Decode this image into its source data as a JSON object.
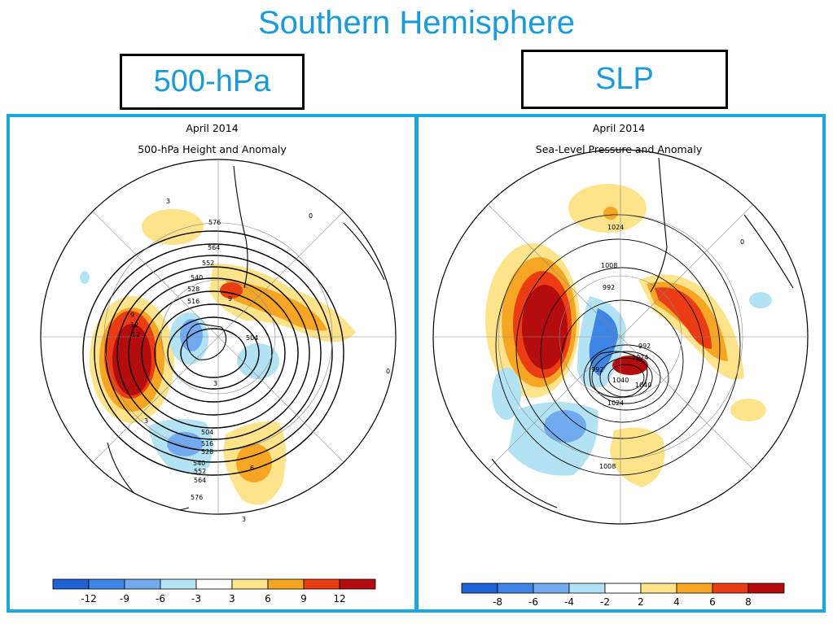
{
  "slide": {
    "title": "Southern Hemisphere",
    "box_left": "500-hPa",
    "box_right": "SLP"
  },
  "panels": [
    {
      "month": "April 2014",
      "subtitle": "500-hPa Height and Anomaly",
      "colorbar": {
        "labels": [
          "-12",
          "-9",
          "-6",
          "-3",
          "3",
          "6",
          "9",
          "12"
        ],
        "colors": [
          "#1d61d6",
          "#3e86e6",
          "#72aaf0",
          "#b3e2f2",
          "#ffffff",
          "#fde48a",
          "#f6a623",
          "#ec3c14",
          "#b50d0d"
        ]
      },
      "contour_labels": [
        "576",
        "564",
        "552",
        "540",
        "528",
        "516",
        "504",
        "504",
        "516",
        "528",
        "540",
        "552",
        "564",
        "576",
        "0",
        "0",
        "3",
        "3",
        "3",
        "3",
        "6",
        "9",
        "12",
        "12",
        "9"
      ]
    },
    {
      "month": "April 2014",
      "subtitle": "Sea-Level Pressure and Anomaly",
      "colorbar": {
        "labels": [
          "-8",
          "-6",
          "-4",
          "-2",
          "2",
          "4",
          "6",
          "8"
        ],
        "colors": [
          "#1d61d6",
          "#3e86e6",
          "#72aaf0",
          "#b3e2f2",
          "#ffffff",
          "#fde48a",
          "#f6a623",
          "#ec3c14",
          "#b50d0d"
        ]
      },
      "contour_labels": [
        "1024",
        "1008",
        "992",
        "992",
        "1024",
        "992",
        "1040",
        "1040",
        "1024",
        "1008",
        "0"
      ]
    }
  ]
}
